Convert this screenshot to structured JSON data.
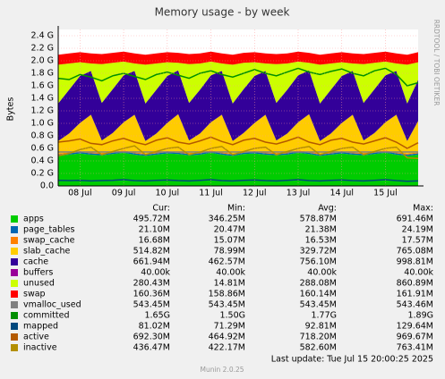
{
  "chart_data": {
    "type": "area",
    "title": "Memory usage - by week",
    "y_label": "Bytes",
    "watermark": "RRDTOOL / TOBI OETIKER",
    "columns": [
      "Cur:",
      "Min:",
      "Avg:",
      "Max:"
    ],
    "last_update": "Last update:  Tue Jul 15 20:00:25 2025",
    "footer": "Munin 2.0.25",
    "grid": true,
    "ylim": [
      0,
      2.5
    ],
    "yticks": [
      {
        "value": 0,
        "label": "0.0"
      },
      {
        "value": 0.2,
        "label": "0.2 G"
      },
      {
        "value": 0.4,
        "label": "0.4 G"
      },
      {
        "value": 0.6,
        "label": "0.6 G"
      },
      {
        "value": 0.8,
        "label": "0.8 G"
      },
      {
        "value": 1.0,
        "label": "1.0 G"
      },
      {
        "value": 1.2,
        "label": "1.2 G"
      },
      {
        "value": 1.4,
        "label": "1.4 G"
      },
      {
        "value": 1.6,
        "label": "1.6 G"
      },
      {
        "value": 1.8,
        "label": "1.8 G"
      },
      {
        "value": 2.0,
        "label": "2.0 G"
      },
      {
        "value": 2.2,
        "label": "2.2 G"
      },
      {
        "value": 2.4,
        "label": "2.4 G"
      }
    ],
    "x": [
      null,
      null,
      "08 Jul",
      null,
      null,
      null,
      "09 Jul",
      null,
      null,
      null,
      "10 Jul",
      null,
      null,
      null,
      "11 Jul",
      null,
      null,
      null,
      "12 Jul",
      null,
      null,
      null,
      "13 Jul",
      null,
      null,
      null,
      "14 Jul",
      null,
      null,
      null,
      "15 Jul",
      null,
      null,
      null
    ],
    "series": [
      {
        "name": "apps",
        "color": "#00cc00",
        "style": "area",
        "cur": "495.72M",
        "min": "346.25M",
        "avg": "578.87M",
        "max": "691.46M",
        "values": [
          0.48,
          0.5,
          0.52,
          0.5,
          0.49,
          0.51,
          0.53,
          0.5,
          0.48,
          0.5,
          0.52,
          0.51,
          0.49,
          0.5,
          0.53,
          0.5,
          0.48,
          0.51,
          0.52,
          0.5,
          0.49,
          0.5,
          0.53,
          0.51,
          0.48,
          0.5,
          0.52,
          0.5,
          0.49,
          0.51,
          0.53,
          0.5,
          0.48,
          0.5
        ]
      },
      {
        "name": "page_tables",
        "color": "#0066b3",
        "style": "area",
        "cur": "21.10M",
        "min": "20.47M",
        "avg": "21.38M",
        "max": "24.19M",
        "values": [
          0.021,
          0.021,
          0.021,
          0.021,
          0.021,
          0.021,
          0.021,
          0.021,
          0.021,
          0.021,
          0.021,
          0.021,
          0.021,
          0.021,
          0.021,
          0.021,
          0.021,
          0.021,
          0.021,
          0.021,
          0.021,
          0.021,
          0.021,
          0.021,
          0.021,
          0.021,
          0.021,
          0.021,
          0.021,
          0.021,
          0.021,
          0.021,
          0.021,
          0.021
        ]
      },
      {
        "name": "swap_cache",
        "color": "#ff8000",
        "style": "area",
        "cur": "16.68M",
        "min": "15.07M",
        "avg": "16.53M",
        "max": "17.57M",
        "values": [
          0.016,
          0.016,
          0.016,
          0.016,
          0.016,
          0.016,
          0.016,
          0.016,
          0.016,
          0.016,
          0.016,
          0.016,
          0.016,
          0.016,
          0.016,
          0.016,
          0.016,
          0.016,
          0.016,
          0.016,
          0.016,
          0.016,
          0.016,
          0.016,
          0.016,
          0.016,
          0.016,
          0.016,
          0.016,
          0.016,
          0.016,
          0.016,
          0.016,
          0.016
        ]
      },
      {
        "name": "slab_cache",
        "color": "#ffcc00",
        "style": "area",
        "cur": "514.82M",
        "min": "78.99M",
        "avg": "329.72M",
        "max": "765.08M",
        "values": [
          0.2,
          0.3,
          0.45,
          0.6,
          0.2,
          0.3,
          0.45,
          0.6,
          0.2,
          0.3,
          0.45,
          0.6,
          0.2,
          0.3,
          0.45,
          0.6,
          0.2,
          0.3,
          0.45,
          0.6,
          0.2,
          0.3,
          0.45,
          0.6,
          0.2,
          0.3,
          0.45,
          0.6,
          0.2,
          0.3,
          0.45,
          0.6,
          0.2,
          0.5
        ]
      },
      {
        "name": "cache",
        "color": "#330099",
        "style": "area",
        "cur": "661.94M",
        "min": "462.57M",
        "avg": "756.10M",
        "max": "998.81M",
        "values": [
          0.6,
          0.7,
          0.75,
          0.7,
          0.6,
          0.7,
          0.75,
          0.7,
          0.6,
          0.7,
          0.75,
          0.7,
          0.6,
          0.7,
          0.75,
          0.7,
          0.6,
          0.7,
          0.75,
          0.7,
          0.6,
          0.7,
          0.75,
          0.7,
          0.6,
          0.7,
          0.75,
          0.7,
          0.6,
          0.7,
          0.75,
          0.7,
          0.6,
          0.66
        ]
      },
      {
        "name": "buffers",
        "color": "#990099",
        "style": "area",
        "cur": "40.00k",
        "min": "40.00k",
        "avg": "40.00k",
        "max": "40.00k",
        "values": [
          4e-05,
          4e-05,
          4e-05,
          4e-05,
          4e-05,
          4e-05,
          4e-05,
          4e-05,
          4e-05,
          4e-05,
          4e-05,
          4e-05,
          4e-05,
          4e-05,
          4e-05,
          4e-05,
          4e-05,
          4e-05,
          4e-05,
          4e-05,
          4e-05,
          4e-05,
          4e-05,
          4e-05,
          4e-05,
          4e-05,
          4e-05,
          4e-05,
          4e-05,
          4e-05,
          4e-05,
          4e-05,
          4e-05,
          4e-05
        ]
      },
      {
        "name": "unused",
        "color": "#ccff00",
        "style": "area",
        "cur": "280.43M",
        "min": "14.81M",
        "avg": "288.08M",
        "max": "860.89M",
        "values": [
          0.62,
          0.42,
          0.22,
          0.12,
          0.62,
          0.42,
          0.22,
          0.12,
          0.62,
          0.42,
          0.22,
          0.12,
          0.62,
          0.42,
          0.22,
          0.12,
          0.62,
          0.42,
          0.22,
          0.12,
          0.62,
          0.42,
          0.22,
          0.12,
          0.62,
          0.42,
          0.22,
          0.12,
          0.62,
          0.42,
          0.22,
          0.12,
          0.62,
          0.28
        ]
      },
      {
        "name": "swap",
        "color": "#ff0000",
        "style": "area",
        "cur": "160.36M",
        "min": "158.86M",
        "avg": "160.14M",
        "max": "161.91M",
        "values": [
          0.16,
          0.16,
          0.16,
          0.16,
          0.16,
          0.16,
          0.16,
          0.16,
          0.16,
          0.16,
          0.16,
          0.16,
          0.16,
          0.16,
          0.16,
          0.16,
          0.16,
          0.16,
          0.16,
          0.16,
          0.16,
          0.16,
          0.16,
          0.16,
          0.16,
          0.16,
          0.16,
          0.16,
          0.16,
          0.16,
          0.16,
          0.16,
          0.16,
          0.16
        ]
      },
      {
        "name": "vmalloc_used",
        "color": "#808080",
        "style": "line",
        "cur": "543.45M",
        "min": "543.45M",
        "avg": "543.45M",
        "max": "543.46M",
        "values": [
          0.5435,
          0.5435,
          0.5435,
          0.5435,
          0.5435,
          0.5435,
          0.5435,
          0.5435,
          0.5435,
          0.5435,
          0.5435,
          0.5435,
          0.5435,
          0.5435,
          0.5435,
          0.5435,
          0.5435,
          0.5435,
          0.5435,
          0.5435,
          0.5435,
          0.5435,
          0.5435,
          0.5435,
          0.5435,
          0.5435,
          0.5435,
          0.5435,
          0.5435,
          0.5435,
          0.5435,
          0.5435,
          0.5435,
          0.5435
        ]
      },
      {
        "name": "committed",
        "color": "#008f00",
        "style": "line",
        "cur": "1.65G",
        "min": "1.50G",
        "avg": "1.77G",
        "max": "1.89G",
        "values": [
          1.72,
          1.7,
          1.78,
          1.74,
          1.68,
          1.76,
          1.8,
          1.75,
          1.7,
          1.78,
          1.82,
          1.77,
          1.72,
          1.8,
          1.84,
          1.78,
          1.74,
          1.8,
          1.86,
          1.8,
          1.76,
          1.82,
          1.88,
          1.82,
          1.78,
          1.83,
          1.87,
          1.8,
          1.76,
          1.84,
          1.88,
          1.78,
          1.6,
          1.65
        ]
      },
      {
        "name": "mapped",
        "color": "#00487d",
        "style": "line",
        "cur": "81.02M",
        "min": "71.29M",
        "avg": "92.81M",
        "max": "129.64M",
        "values": [
          0.09,
          0.085,
          0.09,
          0.08,
          0.085,
          0.09,
          0.1,
          0.085,
          0.08,
          0.09,
          0.095,
          0.085,
          0.08,
          0.09,
          0.1,
          0.085,
          0.08,
          0.09,
          0.095,
          0.085,
          0.08,
          0.09,
          0.1,
          0.085,
          0.08,
          0.09,
          0.095,
          0.085,
          0.08,
          0.09,
          0.1,
          0.085,
          0.075,
          0.08
        ]
      },
      {
        "name": "active",
        "color": "#b35a00",
        "style": "line",
        "cur": "692.30M",
        "min": "464.92M",
        "avg": "718.20M",
        "max": "969.67M",
        "values": [
          0.7,
          0.72,
          0.75,
          0.68,
          0.66,
          0.72,
          0.76,
          0.7,
          0.66,
          0.73,
          0.77,
          0.7,
          0.67,
          0.72,
          0.78,
          0.71,
          0.66,
          0.73,
          0.76,
          0.7,
          0.67,
          0.72,
          0.78,
          0.7,
          0.66,
          0.73,
          0.76,
          0.7,
          0.67,
          0.72,
          0.77,
          0.7,
          0.6,
          0.69
        ]
      },
      {
        "name": "inactive",
        "color": "#b38f00",
        "style": "line",
        "cur": "436.47M",
        "min": "422.17M",
        "avg": "582.60M",
        "max": "763.41M",
        "values": [
          0.48,
          0.52,
          0.58,
          0.62,
          0.5,
          0.55,
          0.6,
          0.64,
          0.5,
          0.55,
          0.6,
          0.62,
          0.5,
          0.54,
          0.6,
          0.63,
          0.5,
          0.55,
          0.6,
          0.62,
          0.5,
          0.55,
          0.6,
          0.63,
          0.5,
          0.55,
          0.6,
          0.62,
          0.5,
          0.55,
          0.6,
          0.62,
          0.45,
          0.44
        ]
      }
    ]
  }
}
